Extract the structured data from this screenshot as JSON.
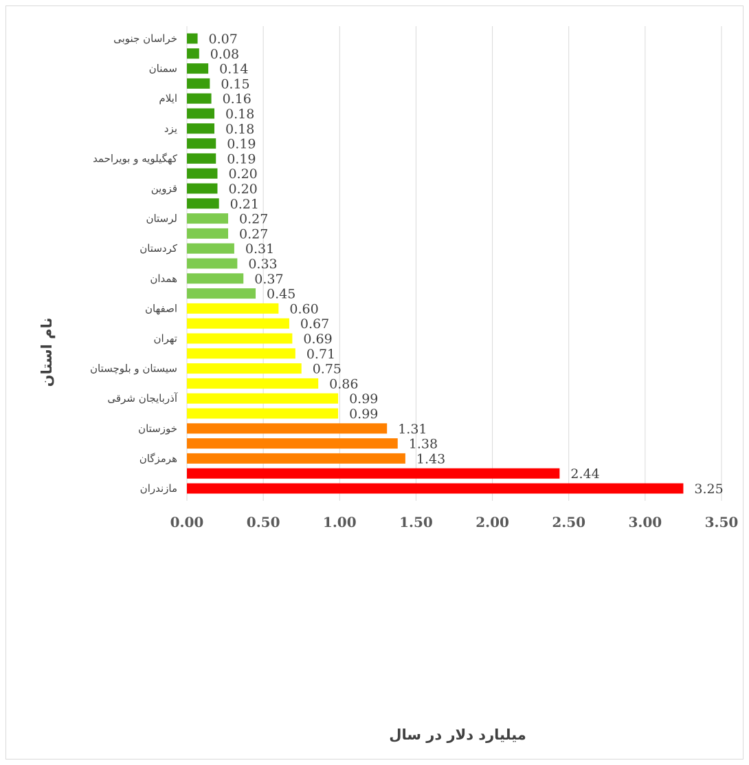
{
  "chart_data": {
    "type": "bar",
    "orientation": "horizontal",
    "title": "",
    "xlabel": "میلیارد دلار در سال",
    "ylabel": "نام استان",
    "xlim": [
      0,
      3.5
    ],
    "x_ticks": [
      "0.00",
      "0.50",
      "1.00",
      "1.50",
      "2.00",
      "2.50",
      "3.00",
      "3.50"
    ],
    "grid": true,
    "legend": "none",
    "bars": [
      {
        "label": "خراسان جنوبی",
        "value": 0.07,
        "color": "#3a9e0c"
      },
      {
        "label": "",
        "value": 0.08,
        "color": "#3a9e0c"
      },
      {
        "label": "سمنان",
        "value": 0.14,
        "color": "#3a9e0c"
      },
      {
        "label": "",
        "value": 0.15,
        "color": "#3a9e0c"
      },
      {
        "label": "ایلام",
        "value": 0.16,
        "color": "#3a9e0c"
      },
      {
        "label": "",
        "value": 0.18,
        "color": "#3a9e0c"
      },
      {
        "label": "یزد",
        "value": 0.18,
        "color": "#3a9e0c"
      },
      {
        "label": "",
        "value": 0.19,
        "color": "#3a9e0c"
      },
      {
        "label": "کهگیلویه و بویراحمد",
        "value": 0.19,
        "color": "#3a9e0c"
      },
      {
        "label": "",
        "value": 0.2,
        "color": "#3a9e0c"
      },
      {
        "label": "قزوین",
        "value": 0.2,
        "color": "#3a9e0c"
      },
      {
        "label": "",
        "value": 0.21,
        "color": "#3a9e0c"
      },
      {
        "label": "لرستان",
        "value": 0.27,
        "color": "#7ecb4f"
      },
      {
        "label": "",
        "value": 0.27,
        "color": "#7ecb4f"
      },
      {
        "label": "کردستان",
        "value": 0.31,
        "color": "#7ecb4f"
      },
      {
        "label": "",
        "value": 0.33,
        "color": "#7ecb4f"
      },
      {
        "label": "همدان",
        "value": 0.37,
        "color": "#7ecb4f"
      },
      {
        "label": "",
        "value": 0.45,
        "color": "#7ecb4f"
      },
      {
        "label": "اصفهان",
        "value": 0.6,
        "color": "#ffff00"
      },
      {
        "label": "",
        "value": 0.67,
        "color": "#ffff00"
      },
      {
        "label": "تهران",
        "value": 0.69,
        "color": "#ffff00"
      },
      {
        "label": "",
        "value": 0.71,
        "color": "#ffff00"
      },
      {
        "label": "سیستان و بلوچستان",
        "value": 0.75,
        "color": "#ffff00"
      },
      {
        "label": "",
        "value": 0.86,
        "color": "#ffff00"
      },
      {
        "label": "آذربایجان شرقی",
        "value": 0.99,
        "color": "#ffff00"
      },
      {
        "label": "",
        "value": 0.99,
        "color": "#ffff00"
      },
      {
        "label": "خوزستان",
        "value": 1.31,
        "color": "#ff8000"
      },
      {
        "label": "",
        "value": 1.38,
        "color": "#ff8000"
      },
      {
        "label": "هرمزگان",
        "value": 1.43,
        "color": "#ff8000"
      },
      {
        "label": "",
        "value": 2.44,
        "color": "#ff0000"
      },
      {
        "label": "مازندران",
        "value": 3.25,
        "color": "#ff0000"
      }
    ]
  }
}
